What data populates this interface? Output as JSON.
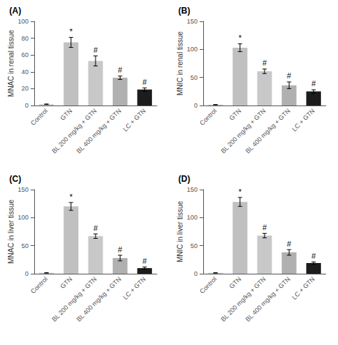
{
  "chart_data": [
    {
      "type": "bar",
      "title": "(A)",
      "ylabel": "MNAC in renal tissue",
      "categories": [
        "Control",
        "GTN",
        "BL 200 mg/kg + GTN",
        "BL 400 mg/kg + GTN",
        "LC + GTN"
      ],
      "values": [
        1.5,
        75,
        53,
        33,
        19
      ],
      "errors": [
        0.3,
        6,
        6,
        2,
        2
      ],
      "annotations": [
        null,
        "*",
        "#",
        "#",
        "#"
      ],
      "colors": [
        "#c8c8c8",
        "#c0c0c0",
        "#c8c8c8",
        "#b0b0b0",
        "#1c1c1c"
      ],
      "ylim": [
        0,
        100
      ],
      "yticks": [
        0,
        20,
        40,
        60,
        80,
        100
      ],
      "grid": false
    },
    {
      "type": "bar",
      "title": "(B)",
      "ylabel": "MNIC in renal tissue",
      "categories": [
        "Control",
        "GTN",
        "BL 200 mg/kg + GTN",
        "BL 400 mg/kg + GTN",
        "LC + GTN"
      ],
      "values": [
        1.5,
        103,
        61,
        36,
        25
      ],
      "errors": [
        0.3,
        7,
        4,
        6,
        3
      ],
      "annotations": [
        null,
        "*",
        "#",
        "#",
        "#"
      ],
      "colors": [
        "#c8c8c8",
        "#c0c0c0",
        "#c8c8c8",
        "#b0b0b0",
        "#1c1c1c"
      ],
      "ylim": [
        0,
        150
      ],
      "yticks": [
        0,
        50,
        100,
        150
      ],
      "grid": false
    },
    {
      "type": "bar",
      "title": "(C)",
      "ylabel": "MNAC in liver tissue",
      "categories": [
        "Control",
        "GTN",
        "BL 200 mg/kg + GTN",
        "BL 400 mg/kg + GTN",
        "LC + GTN"
      ],
      "values": [
        1.5,
        120,
        67,
        28,
        10
      ],
      "errors": [
        0.3,
        7,
        4,
        5,
        2
      ],
      "annotations": [
        null,
        "*",
        "#",
        "#",
        "#"
      ],
      "colors": [
        "#c8c8c8",
        "#c0c0c0",
        "#c8c8c8",
        "#b0b0b0",
        "#1c1c1c"
      ],
      "ylim": [
        0,
        150
      ],
      "yticks": [
        0,
        50,
        100,
        150
      ],
      "grid": false
    },
    {
      "type": "bar",
      "title": "(D)",
      "ylabel": "MNIC in liver tissue",
      "categories": [
        "Control",
        "GTN",
        "BL 200 mg/kg + GTN",
        "BL 400 mg/kg + GTN",
        "LC + GTN"
      ],
      "values": [
        1.5,
        128,
        68,
        38,
        19
      ],
      "errors": [
        0.3,
        8,
        4,
        5,
        2
      ],
      "annotations": [
        null,
        "*",
        "#",
        "#",
        "#"
      ],
      "colors": [
        "#c8c8c8",
        "#c0c0c0",
        "#c8c8c8",
        "#b0b0b0",
        "#1c1c1c"
      ],
      "ylim": [
        0,
        150
      ],
      "yticks": [
        0,
        50,
        100,
        150
      ],
      "grid": false
    }
  ]
}
